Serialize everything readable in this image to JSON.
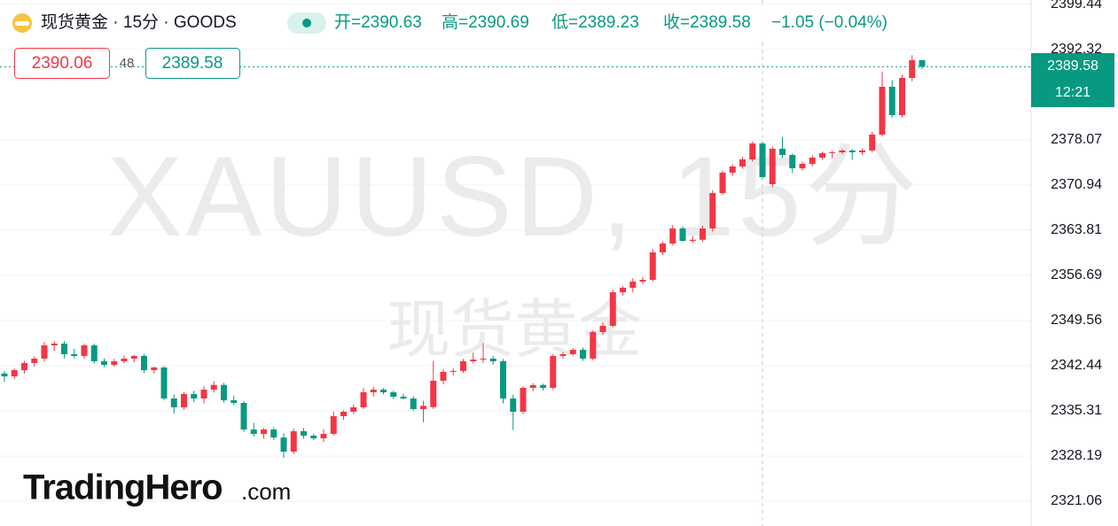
{
  "chart_data": {
    "type": "candlestick",
    "title": "现货黄金 · 15分 · GOODS",
    "legend_items": [
      "开=2390.63",
      "高=2390.69",
      "低=2389.23",
      "收=2389.58"
    ],
    "change": "−1.05 (−0.04%)",
    "bid": "2390.06",
    "spread": "48",
    "ask": "2389.58",
    "price_label": "2389.58",
    "countdown": "12:21",
    "watermark": "XAUUSD, 15分",
    "watermark_sub": "现货黄金",
    "brand": "TradingHero",
    "brand_suffix": ".com",
    "up_color": "#f23645",
    "down_color": "#089981",
    "ylim": [
      2317.15,
      2400.11
    ],
    "yticks": [
      2321.06,
      2328.19,
      2335.31,
      2342.44,
      2349.56,
      2356.69,
      2363.81,
      2370.94,
      2378.07,
      2392.32,
      2399.44
    ],
    "grid": true,
    "open": [
      2341.2,
      2340.75,
      2341.73,
      2342.85,
      2343.55,
      2345.64,
      2345.92,
      2344.25,
      2343.97,
      2345.64,
      2343.13,
      2342.57,
      2343.13,
      2343.55,
      2343.97,
      2341.73,
      2342.15,
      2337.26,
      2335.87,
      2337.96,
      2337.26,
      2338.66,
      2339.4,
      2336.98,
      2336.56,
      2332.37,
      2331.68,
      2332.37,
      2331.1,
      2328.88,
      2332.1,
      2331.4,
      2330.98,
      2331.68,
      2334.47,
      2335.17,
      2335.87,
      2338.24,
      2338.66,
      2338.24,
      2337.54,
      2337.26,
      2335.59,
      2335.9,
      2340.06,
      2341.45,
      2341.6,
      2343.13,
      2343.4,
      2343.55,
      2343.13,
      2337.26,
      2335.17,
      2338.94,
      2339.36,
      2338.94,
      2343.97,
      2344.25,
      2344.94,
      2343.55,
      2347.74,
      2348.72,
      2354.02,
      2354.72,
      2355.7,
      2355.98,
      2360.31,
      2361.7,
      2364.08,
      2362.12,
      2362.3,
      2364.08,
      2369.66,
      2372.88,
      2373.85,
      2374.97,
      2377.49,
      2371.06,
      2376.65,
      2375.67,
      2373.57,
      2374.27,
      2375.25,
      2375.95,
      2376.09,
      2376.37,
      2376.09,
      2376.37,
      2378.88,
      2386.42,
      2381.95,
      2387.82,
      2390.63
    ],
    "high": [
      2341.6,
      2342.0,
      2343.2,
      2343.9,
      2346.2,
      2346.3,
      2346.3,
      2345.1,
      2345.9,
      2345.9,
      2343.6,
      2343.5,
      2344.0,
      2344.1,
      2344.3,
      2342.3,
      2342.4,
      2337.9,
      2338.3,
      2338.5,
      2339.2,
      2340.0,
      2339.7,
      2337.7,
      2336.9,
      2333.4,
      2332.6,
      2332.7,
      2331.8,
      2332.5,
      2332.6,
      2331.7,
      2332.4,
      2335.2,
      2335.4,
      2336.3,
      2338.9,
      2339.1,
      2338.9,
      2338.5,
      2338.0,
      2337.6,
      2336.9,
      2343.2,
      2341.9,
      2342.0,
      2343.5,
      2344.5,
      2346.0,
      2344.0,
      2343.5,
      2337.9,
      2339.2,
      2339.7,
      2339.6,
      2344.3,
      2344.6,
      2345.2,
      2345.3,
      2348.0,
      2349.3,
      2354.4,
      2355.0,
      2356.2,
      2356.4,
      2360.8,
      2362.0,
      2364.6,
      2364.4,
      2362.9,
      2364.5,
      2370.1,
      2373.2,
      2374.2,
      2375.4,
      2377.8,
      2377.8,
      2377.0,
      2378.5,
      2375.9,
      2374.6,
      2375.6,
      2376.2,
      2376.3,
      2376.6,
      2376.6,
      2376.7,
      2379.3,
      2388.8,
      2387.5,
      2388.3,
      2391.4,
      2390.69
    ],
    "low": [
      2339.9,
      2340.3,
      2341.2,
      2342.3,
      2343.1,
      2344.8,
      2343.6,
      2343.6,
      2343.5,
      2342.8,
      2342.2,
      2342.3,
      2342.8,
      2343.0,
      2341.3,
      2341.2,
      2337.0,
      2334.9,
      2335.5,
      2336.7,
      2336.5,
      2338.2,
      2336.6,
      2336.2,
      2332.0,
      2331.3,
      2330.9,
      2330.7,
      2327.9,
      2328.5,
      2330.9,
      2330.7,
      2330.4,
      2331.4,
      2333.9,
      2334.8,
      2335.6,
      2337.6,
      2337.9,
      2337.2,
      2337.1,
      2335.3,
      2333.5,
      2335.6,
      2339.5,
      2340.9,
      2341.3,
      2342.8,
      2342.9,
      2342.6,
      2336.5,
      2332.3,
      2334.8,
      2338.4,
      2338.5,
      2338.6,
      2343.5,
      2344.0,
      2343.2,
      2343.3,
      2347.3,
      2348.5,
      2353.5,
      2354.0,
      2355.3,
      2355.7,
      2359.9,
      2361.4,
      2362.0,
      2361.8,
      2362.0,
      2363.6,
      2369.4,
      2372.4,
      2373.5,
      2374.6,
      2371.9,
      2370.6,
      2375.2,
      2372.8,
      2373.2,
      2373.9,
      2374.9,
      2375.1,
      2375.8,
      2374.9,
      2375.7,
      2376.1,
      2378.6,
      2381.5,
      2381.6,
      2387.3,
      2389.23
    ],
    "close": [
      2340.75,
      2341.73,
      2342.85,
      2343.55,
      2345.64,
      2345.92,
      2344.25,
      2343.97,
      2345.64,
      2343.13,
      2342.57,
      2343.13,
      2343.55,
      2343.97,
      2341.73,
      2342.15,
      2337.26,
      2335.87,
      2337.96,
      2337.26,
      2338.66,
      2339.4,
      2336.98,
      2336.56,
      2332.37,
      2331.68,
      2332.37,
      2331.1,
      2328.88,
      2332.1,
      2331.4,
      2330.98,
      2331.68,
      2334.47,
      2335.17,
      2335.87,
      2338.24,
      2338.66,
      2338.24,
      2337.54,
      2337.26,
      2335.59,
      2336.1,
      2340.06,
      2341.45,
      2341.6,
      2343.13,
      2343.4,
      2343.55,
      2343.13,
      2337.26,
      2335.17,
      2338.94,
      2339.36,
      2338.94,
      2343.97,
      2344.25,
      2344.94,
      2343.55,
      2347.74,
      2348.72,
      2354.02,
      2354.72,
      2355.7,
      2355.98,
      2360.31,
      2361.7,
      2364.08,
      2362.12,
      2362.3,
      2364.08,
      2369.66,
      2372.88,
      2373.85,
      2374.97,
      2377.49,
      2372.18,
      2376.65,
      2375.67,
      2373.57,
      2374.27,
      2375.25,
      2375.95,
      2376.09,
      2376.37,
      2376.09,
      2376.37,
      2378.88,
      2386.42,
      2381.95,
      2387.82,
      2390.63,
      2389.58
    ]
  }
}
